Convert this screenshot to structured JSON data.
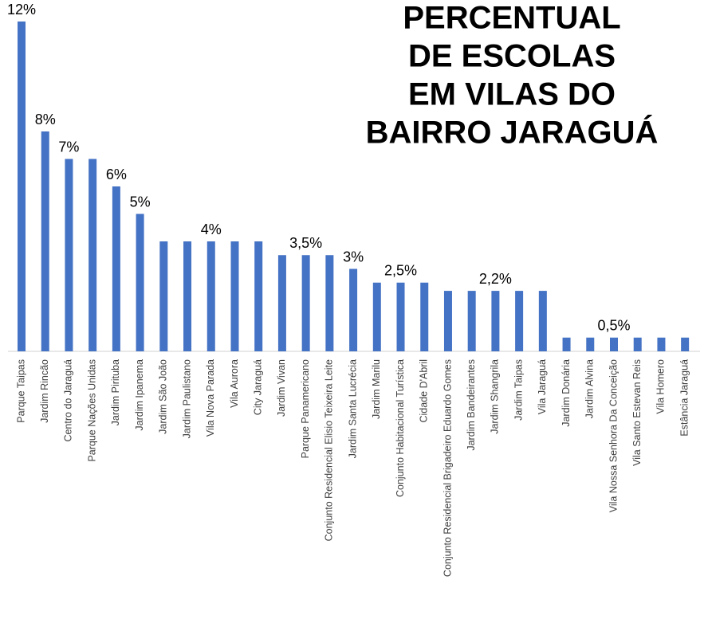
{
  "chart_data": {
    "type": "bar",
    "title": [
      "PERCENTUAL",
      "DE ESCOLAS",
      "EM VILAS DO",
      "BAIRRO JARAGUÁ"
    ],
    "categories": [
      "Parque Taipas",
      "Jardim Rincão",
      "Centro do Jaraguá",
      "Parque Nações Unidas",
      "Jardim Pirituba",
      "Jardim Ipanema",
      "Jardim São João",
      "Jardim Paulistano",
      "Vila Nova Parada",
      "Vila Aurora",
      "City Jaraguá",
      "Jardim Vivan",
      "Parque Panamericano",
      "Conjunto Residencial Elisio Teixeira Leite",
      "Jardim Santa Lucrécia",
      "Jardim Marilu",
      "Conjunto Habitacional Turística",
      "Cidade D'Abril",
      "Conjunto Residencial Brigadeiro Eduardo Gomes",
      "Jardim Bandeirantes",
      "Jardim Shangrila",
      "Jardim Taipas",
      "Vila Jaraguá",
      "Jardim Donária",
      "Jardim Alvina",
      "Vila Nossa Senhora Da Conceição",
      "Vila Santo Estevan Reis",
      "Vila Homero",
      "Estância Jaraguá"
    ],
    "values": [
      12,
      8,
      7,
      7,
      6,
      5,
      4,
      4,
      4,
      4,
      4,
      3.5,
      3.5,
      3.5,
      3,
      2.5,
      2.5,
      2.5,
      2.2,
      2.2,
      2.2,
      2.2,
      2.2,
      0.5,
      0.5,
      0.5,
      0.5,
      0.5,
      0.5
    ],
    "value_labels": [
      "12%",
      "8%",
      "7%",
      null,
      "6%",
      "5%",
      null,
      null,
      "4%",
      null,
      null,
      null,
      "3,5%",
      null,
      "3%",
      null,
      "2,5%",
      null,
      null,
      null,
      "2,2%",
      null,
      null,
      null,
      null,
      "0,5%",
      null,
      null,
      null
    ],
    "color": "#4472c4",
    "ylim": [
      0,
      12
    ]
  }
}
